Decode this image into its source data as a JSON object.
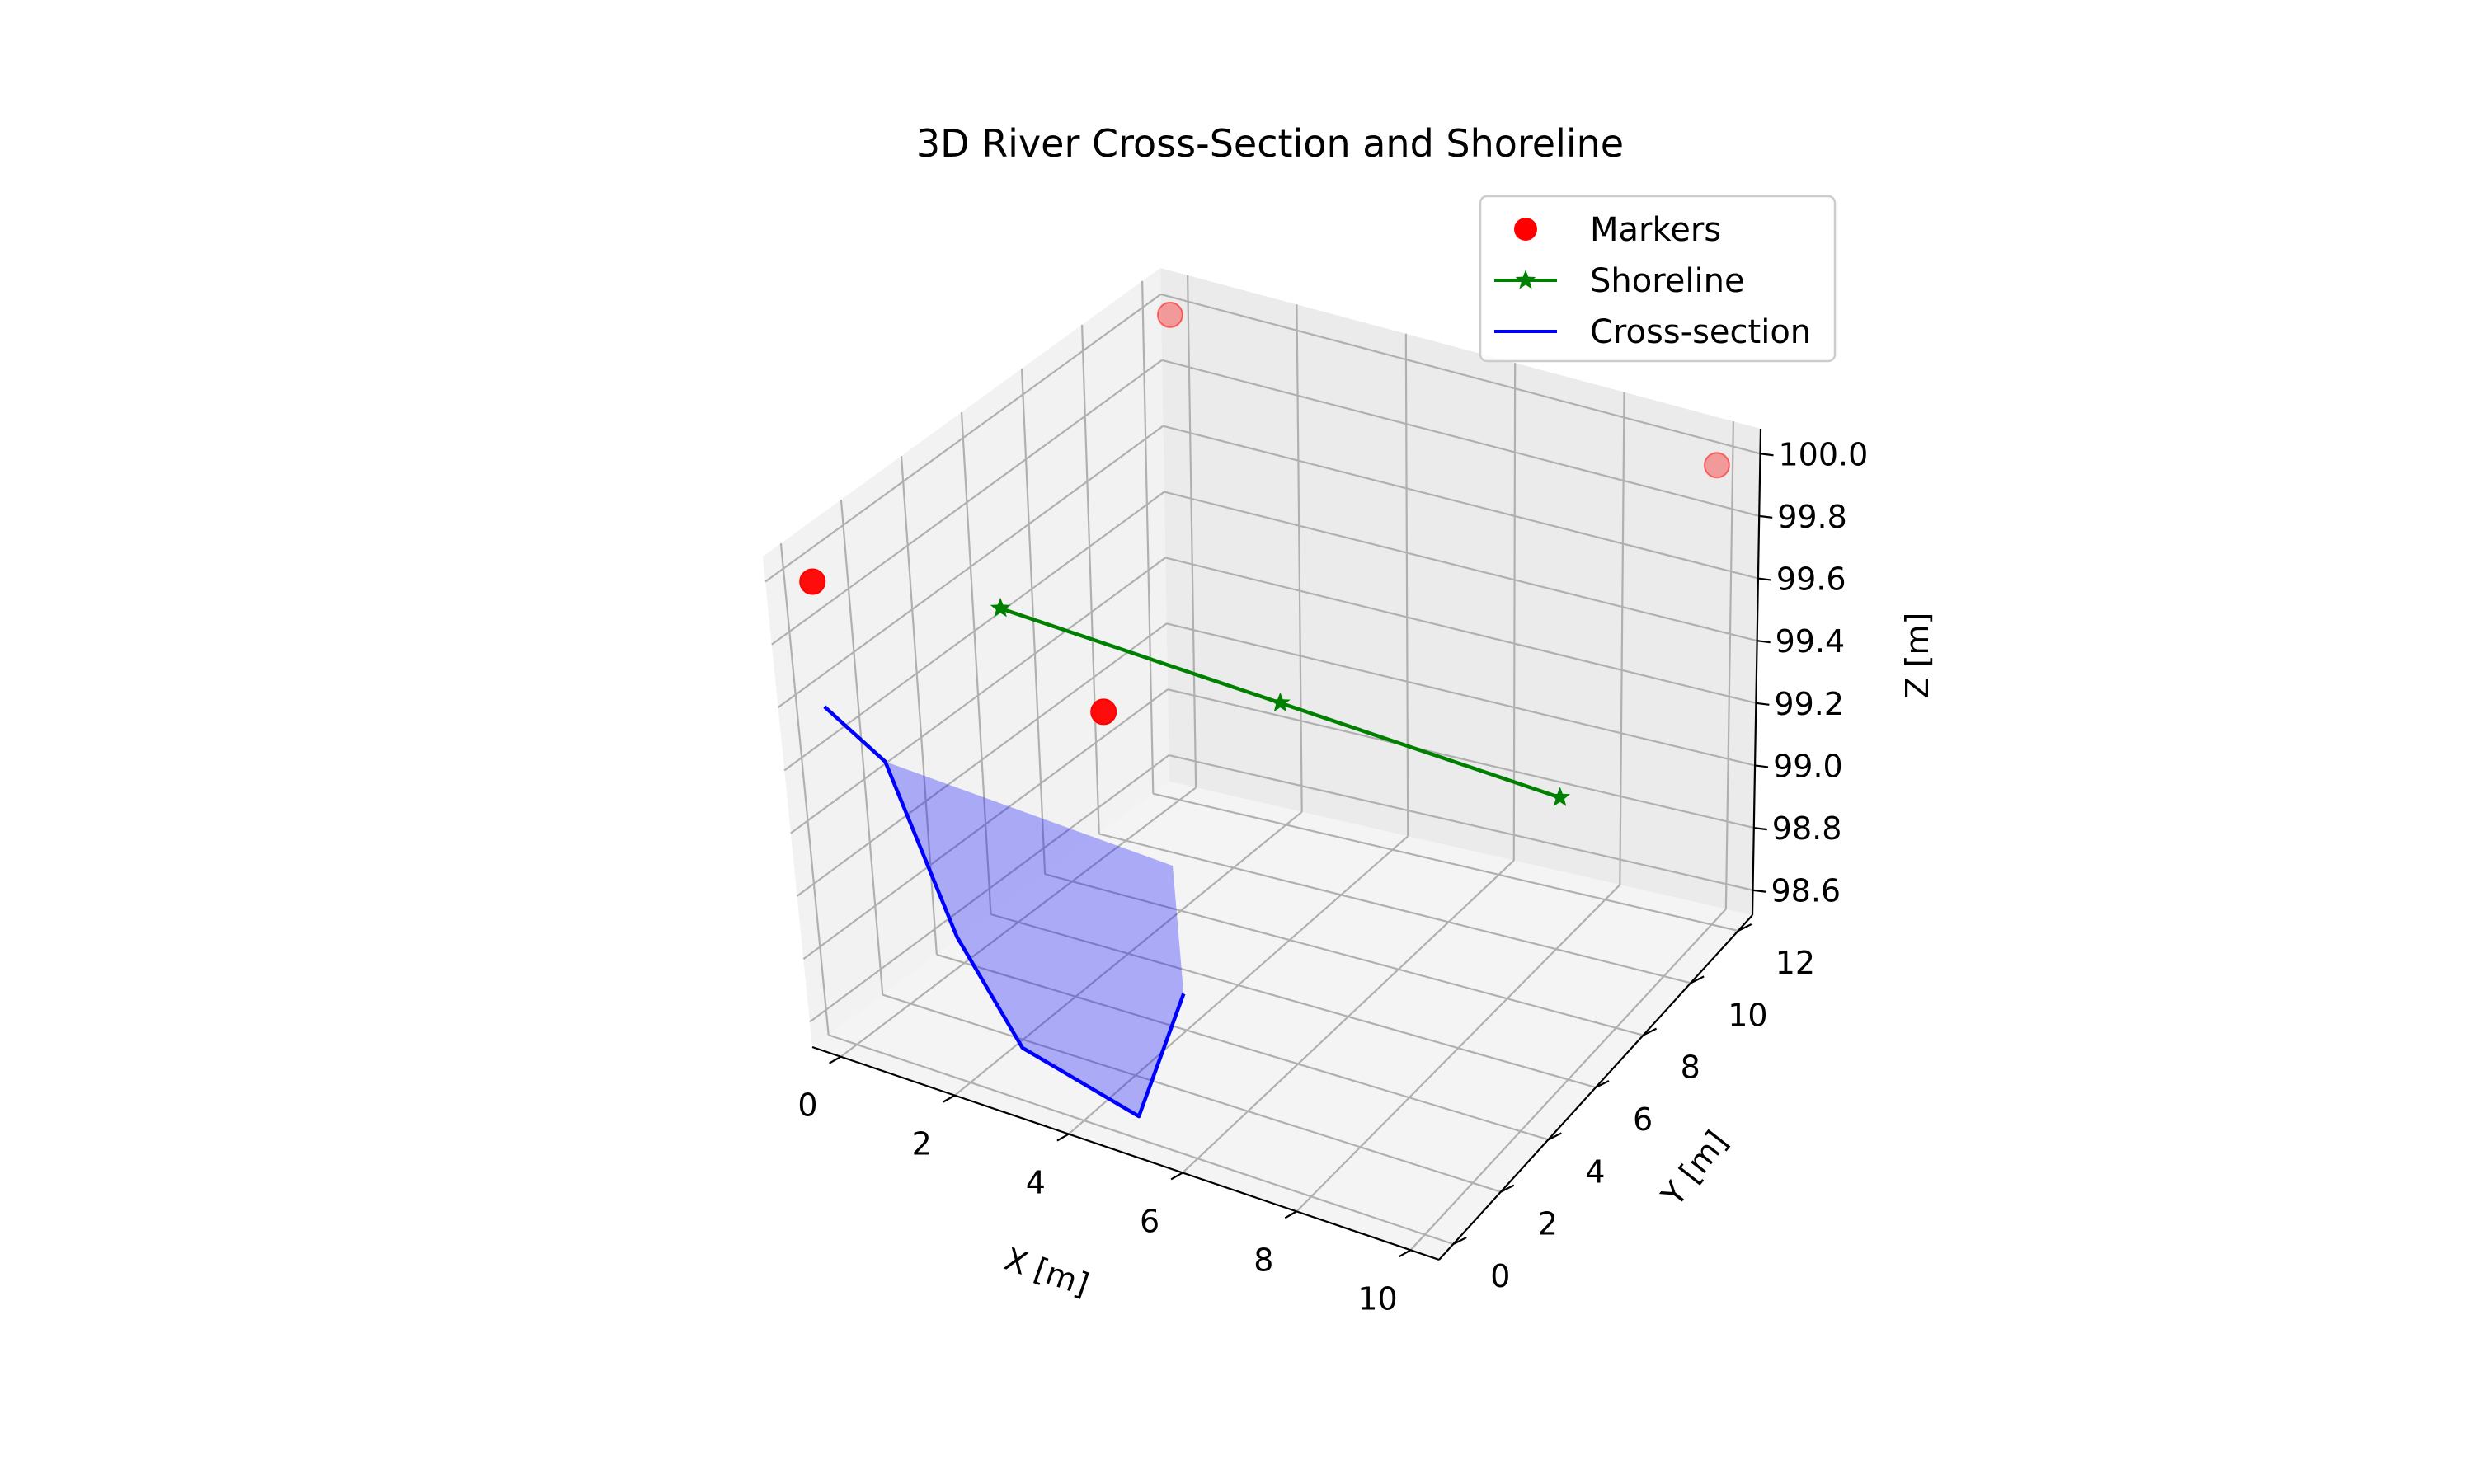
{
  "chart_data": {
    "type": "scatter",
    "title": "3D River Cross-Section and Shoreline",
    "xlabel": "X [m]",
    "ylabel": "Y [m]",
    "zlabel": "Z [m]",
    "xlim": [
      -0.5,
      10.5
    ],
    "ylim": [
      -0.6,
      12.6
    ],
    "zlim": [
      98.52,
      100.08
    ],
    "xticks": [
      0,
      2,
      4,
      6,
      8,
      10
    ],
    "yticks": [
      0,
      2,
      4,
      6,
      8,
      10,
      12
    ],
    "zticks": [
      98.6,
      98.8,
      99.0,
      99.2,
      99.4,
      99.6,
      99.8,
      100.0
    ],
    "ztick_labels": [
      "98.6",
      "98.8",
      "99.0",
      "99.2",
      "99.4",
      "99.6",
      "99.8",
      "100.0"
    ],
    "series": [
      {
        "name": "Markers",
        "kind": "scatter",
        "color": "#ff0000",
        "points": [
          [
            0,
            0,
            100.0
          ],
          [
            5,
            0,
            100.0
          ],
          [
            0,
            12,
            100.0
          ],
          [
            10,
            12,
            100.0
          ]
        ]
      },
      {
        "name": "Shoreline",
        "kind": "line-star",
        "color": "#008000",
        "points": [
          [
            0,
            6,
            99.5
          ],
          [
            5,
            6,
            99.5
          ],
          [
            10,
            6,
            99.5
          ]
        ]
      },
      {
        "name": "Cross-section",
        "kind": "line",
        "color": "#0000ff",
        "fill_color": "#0000ff",
        "fill_opacity": 0.3,
        "points": [
          [
            0,
            0,
            99.6
          ],
          [
            1,
            0,
            99.5
          ],
          [
            2,
            0,
            99.0
          ],
          [
            3,
            0,
            98.7
          ],
          [
            5,
            0,
            98.6
          ],
          [
            6,
            0,
            99.1
          ]
        ]
      }
    ],
    "legend": {
      "position": "top-right",
      "entries": [
        "Markers",
        "Shoreline",
        "Cross-section"
      ]
    }
  }
}
